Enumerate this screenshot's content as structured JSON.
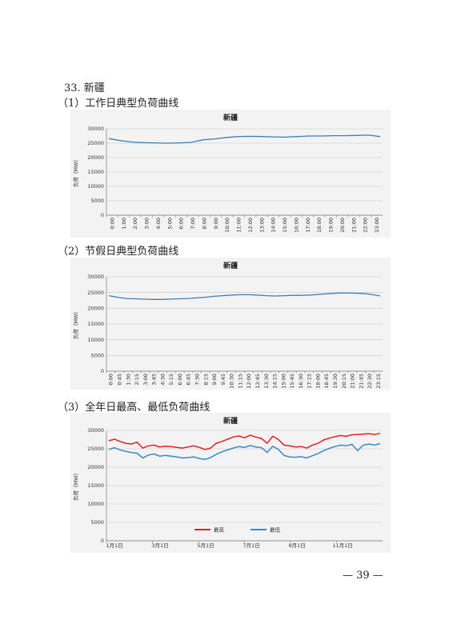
{
  "section": {
    "heading": "33. 新疆"
  },
  "subsections": [
    {
      "label": "（1）工作日典型负荷曲线"
    },
    {
      "label": "（2）节假日典型负荷曲线"
    },
    {
      "label": "（3）全年日最高、最低负荷曲线"
    }
  ],
  "page_number": "— 39 —",
  "chart_data": [
    {
      "type": "line",
      "title": "新疆",
      "ylabel": "负荷（MW）",
      "xlabel": "",
      "ylim": [
        0,
        30000
      ],
      "yticks": [
        "0",
        "5000",
        "10000",
        "15000",
        "20000",
        "25000",
        "30000"
      ],
      "xticks": [
        "0:00",
        "1:00",
        "2:00",
        "3:00",
        "4:00",
        "5:00",
        "6:00",
        "7:00",
        "8:00",
        "9:00",
        "10:00",
        "11:00",
        "12:00",
        "13:00",
        "14:00",
        "15:00",
        "16:00",
        "17:00",
        "18:00",
        "19:00",
        "20:00",
        "21:00",
        "22:00",
        "23:00"
      ],
      "grid": true,
      "color": "#3d7fb5",
      "series": [
        {
          "values": [
            26600,
            25900,
            25400,
            25200,
            25100,
            25000,
            25100,
            25300,
            26200,
            26500,
            27000,
            27300,
            27400,
            27300,
            27200,
            27100,
            27300,
            27500,
            27500,
            27600,
            27600,
            27700,
            27800,
            27300
          ]
        }
      ]
    },
    {
      "type": "line",
      "title": "新疆",
      "ylabel": "负荷（MW）",
      "xlabel": "",
      "ylim": [
        0,
        30000
      ],
      "yticks": [
        "0",
        "5000",
        "10000",
        "15000",
        "20000",
        "25000",
        "30000"
      ],
      "xticks": [
        "0:00",
        "0:45",
        "1:30",
        "2:15",
        "3:00",
        "3:45",
        "4:30",
        "5:15",
        "6:00",
        "6:45",
        "7:30",
        "8:15",
        "9:00",
        "9:45",
        "10:30",
        "11:15",
        "12:00",
        "12:45",
        "13:30",
        "14:15",
        "15:00",
        "15:45",
        "16:30",
        "17:15",
        "18:00",
        "18:45",
        "19:30",
        "20:15",
        "21:00",
        "21:45",
        "22:30",
        "23:15"
      ],
      "grid": true,
      "color": "#3d7fb5",
      "series": [
        {
          "values": [
            24000,
            23500,
            23100,
            23000,
            22900,
            22800,
            22800,
            22900,
            23000,
            23100,
            23300,
            23500,
            23800,
            24000,
            24200,
            24300,
            24300,
            24200,
            24000,
            23900,
            24000,
            24100,
            24100,
            24200,
            24400,
            24600,
            24800,
            24900,
            24800,
            24700,
            24400,
            23900
          ]
        }
      ]
    },
    {
      "type": "line",
      "title": "新疆",
      "ylabel": "负荷（MW）",
      "xlabel": "",
      "ylim": [
        0,
        30000
      ],
      "yticks": [
        "0",
        "5000",
        "10000",
        "15000",
        "20000",
        "25000",
        "30000"
      ],
      "xticks": [
        "1月1日",
        "3月1日",
        "5月1日",
        "7月1日",
        "9月1日",
        "11月1日"
      ],
      "grid": true,
      "legend": "bottom-center",
      "series": [
        {
          "name": "最高",
          "color": "#e02020",
          "values": [
            27200,
            27600,
            27000,
            26500,
            26300,
            26800,
            25200,
            25800,
            26000,
            25500,
            25700,
            25600,
            25400,
            25200,
            25500,
            25800,
            25400,
            24800,
            25200,
            26500,
            27000,
            27600,
            28200,
            28500,
            28000,
            28700,
            28200,
            27800,
            26500,
            28400,
            27500,
            26000,
            25800,
            25500,
            25600,
            25200,
            26000,
            26500,
            27400,
            27900,
            28300,
            28600,
            28400,
            28800,
            28900,
            29000,
            29100,
            28900,
            29200
          ]
        },
        {
          "name": "最低",
          "color": "#3b88c4",
          "values": [
            24800,
            25300,
            24700,
            24300,
            24000,
            23800,
            22500,
            23300,
            23600,
            23000,
            23200,
            23000,
            22800,
            22500,
            22600,
            22800,
            22400,
            22100,
            22600,
            23500,
            24200,
            24700,
            25200,
            25600,
            25400,
            25900,
            25500,
            25300,
            24000,
            25700,
            24800,
            23200,
            22800,
            22700,
            22900,
            22500,
            23100,
            23700,
            24500,
            25100,
            25600,
            26000,
            25800,
            26200,
            24500,
            26000,
            26300,
            26000,
            26400
          ]
        }
      ]
    }
  ]
}
